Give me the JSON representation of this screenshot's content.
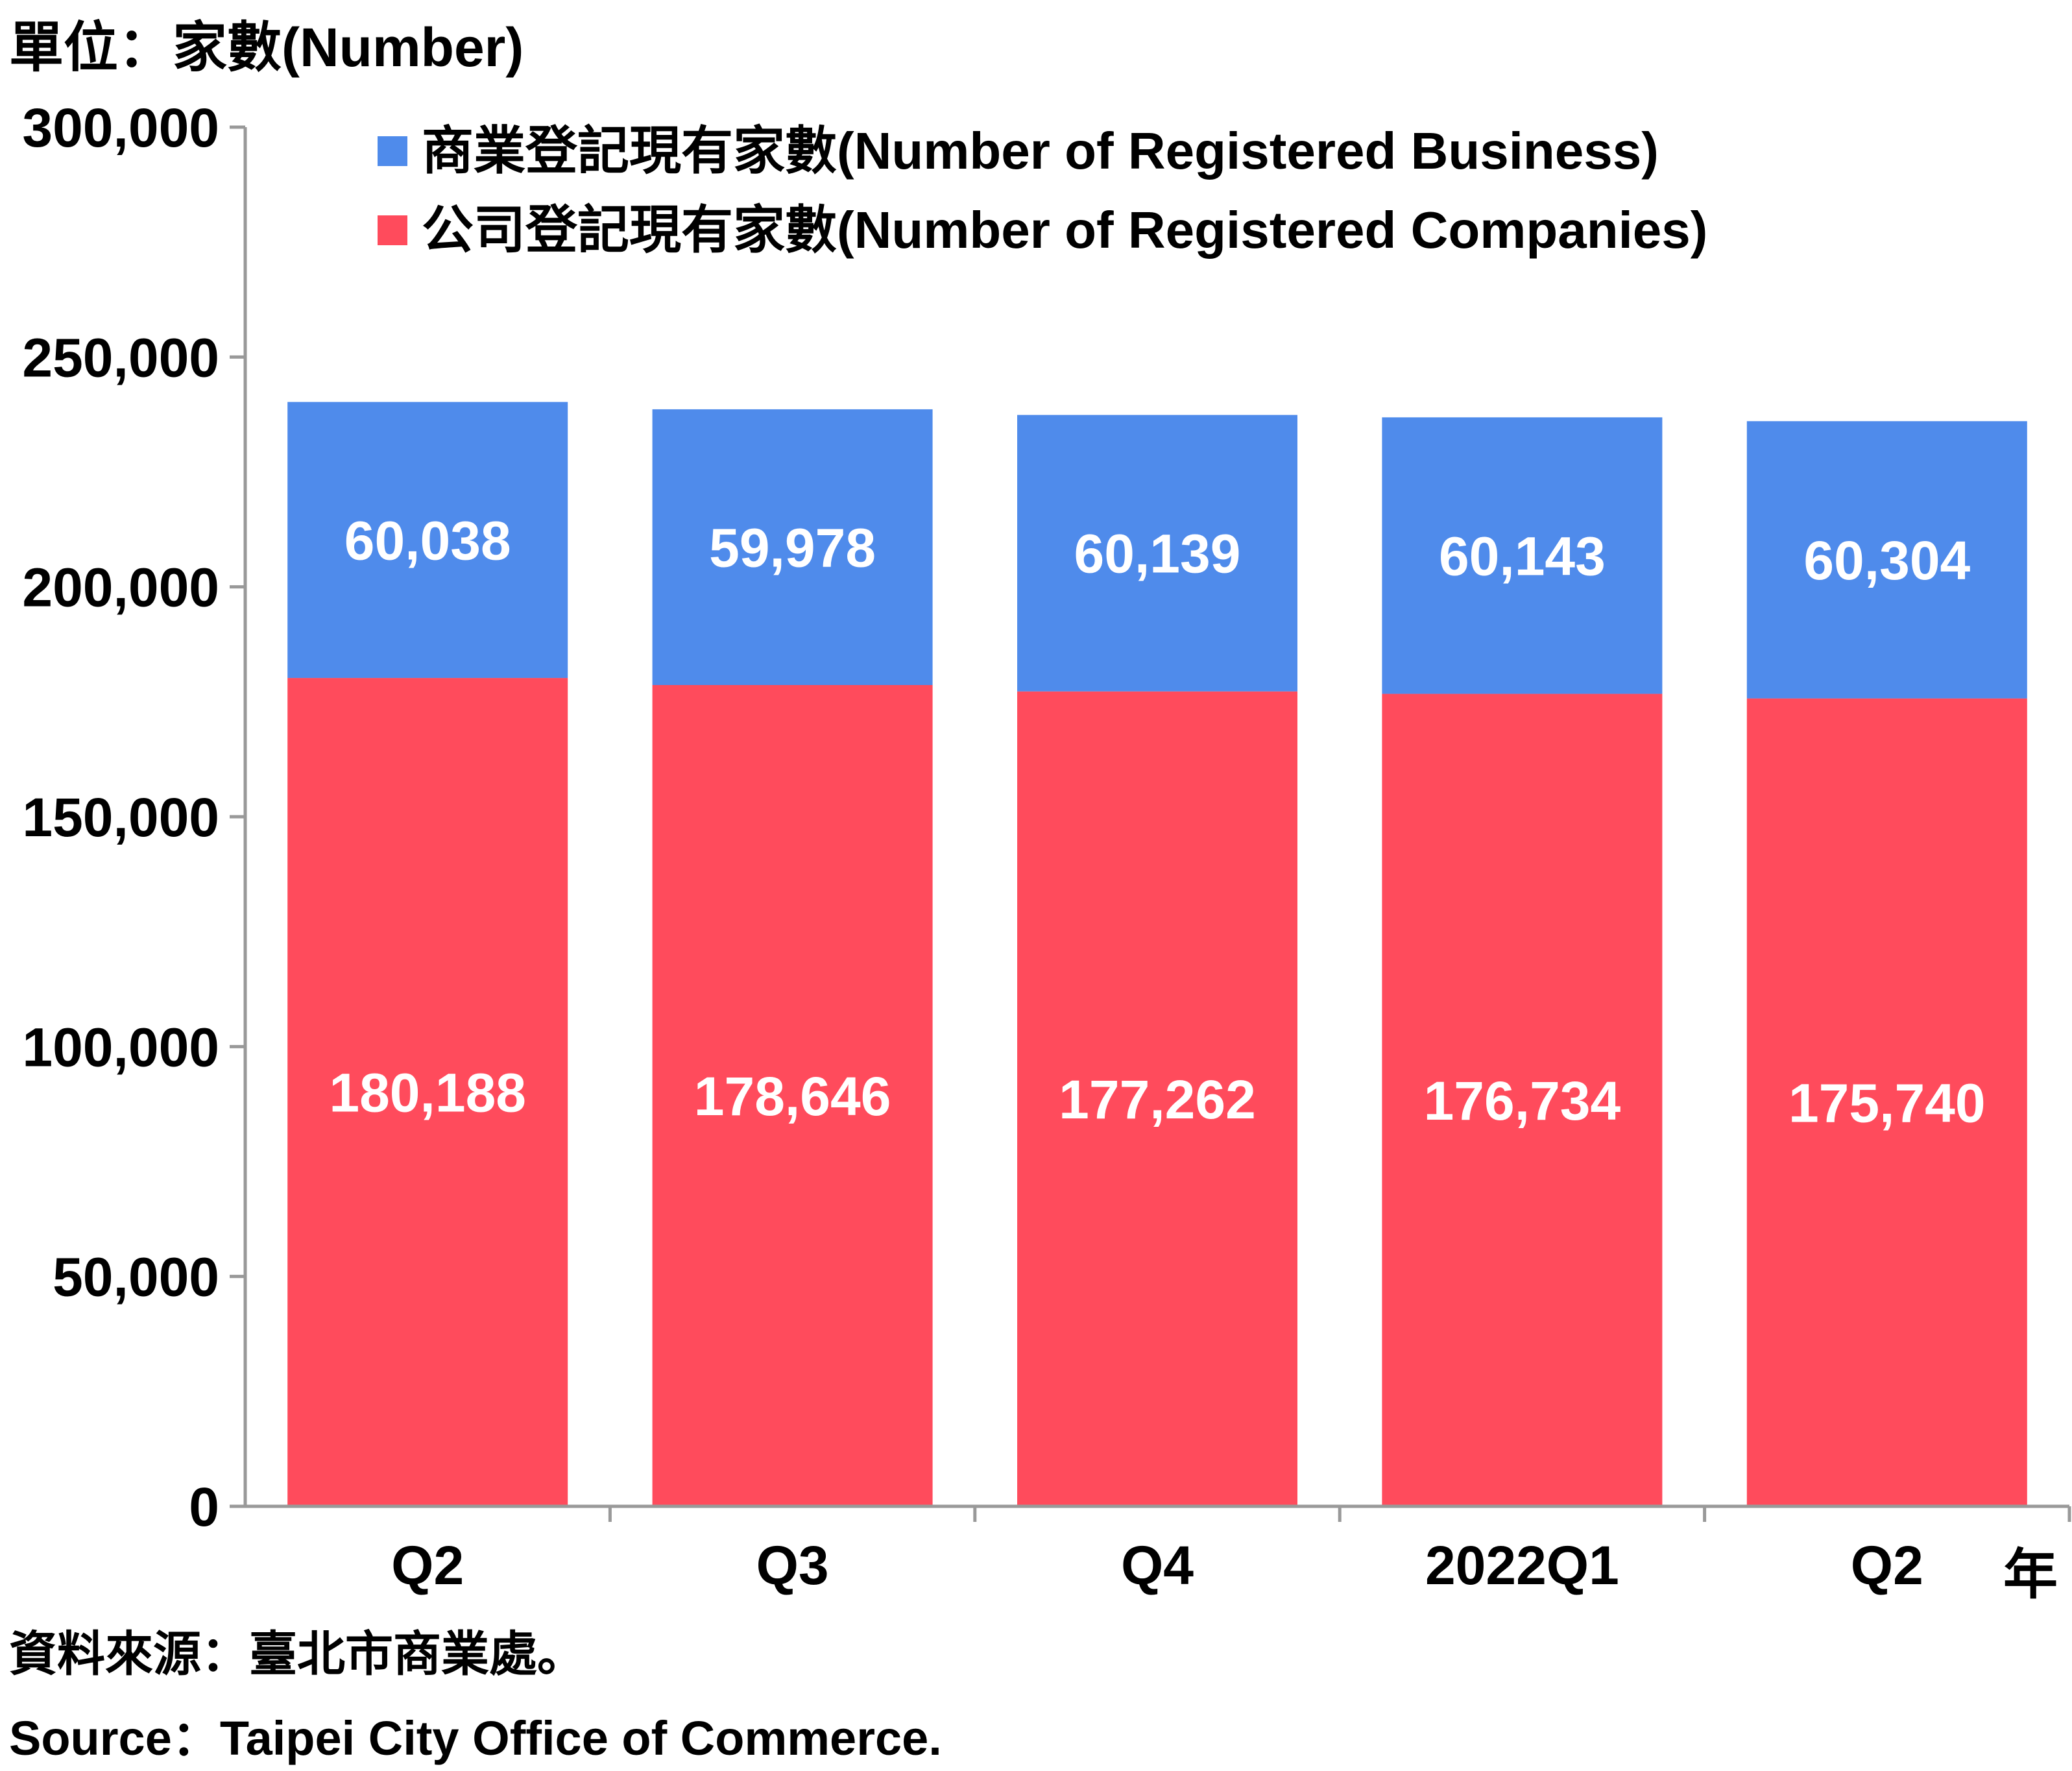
{
  "unit_label": "單位：家數(Number)",
  "year_unit": "年",
  "source_zh": "資料來源：臺北市商業處。",
  "source_en": "Source：Taipei City Office of Commerce.",
  "colors": {
    "business": "#4F8BEB",
    "companies": "#FF4B5C",
    "axis": "#999999"
  },
  "chart_data": {
    "type": "bar",
    "stacked": true,
    "categories": [
      "Q2",
      "Q3",
      "Q4",
      "2022Q1",
      "Q2"
    ],
    "series": [
      {
        "name": "公司登記現有家數(Number of Registered Companies)",
        "values": [
          180188,
          178646,
          177262,
          176734,
          175740
        ]
      },
      {
        "name": "商業登記現有家數(Number of Registered Business)",
        "values": [
          60038,
          59978,
          60139,
          60143,
          60304
        ]
      }
    ],
    "ylim": [
      0,
      300000
    ],
    "yticks": [
      0,
      50000,
      100000,
      150000,
      200000,
      250000,
      300000
    ],
    "ytick_labels": [
      "0",
      "50,000",
      "100,000",
      "150,000",
      "200,000",
      "250,000",
      "300,000"
    ],
    "legend_position": "top",
    "grid": false
  }
}
